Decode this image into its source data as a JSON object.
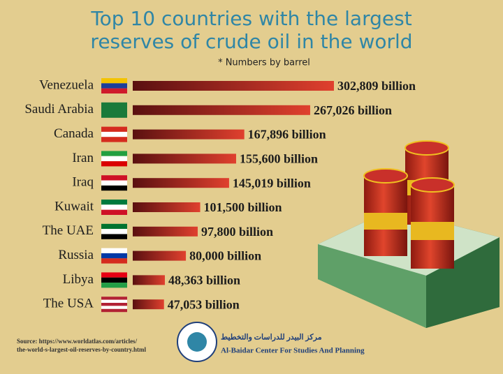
{
  "chart_data": {
    "type": "bar",
    "orientation": "horizontal",
    "title": [
      "Top 10 countries with the largest",
      "reserves of crude oil in the world"
    ],
    "subtitle": "* Numbers by barrel",
    "categories": [
      "Venezuela",
      "Saudi Arabia",
      "Canada",
      "Iran",
      "Iraq",
      "Kuwait",
      "The UAE",
      "Russia",
      "Libya",
      "The USA"
    ],
    "values": [
      302809,
      267026,
      167896,
      155600,
      145019,
      101500,
      97800,
      80000,
      48363,
      47053
    ],
    "value_labels": [
      "302,809 billion",
      "267,026 billion",
      "167,896 billion",
      "155,600 billion",
      "145,019 billion",
      "101,500 billion",
      "97,800 billion",
      "80,000 billion",
      "48,363 billion",
      "47,053 billion"
    ],
    "color": "#d8352a",
    "source": [
      "Source: https://www.worldatlas.com/articles/",
      "the-world-s-largest-oil-reserves-by-country.html"
    ],
    "logo": [
      "مركز البيدر للدراسات والتخطيط",
      "Al-Baidar Center For Studies And Planning"
    ]
  }
}
